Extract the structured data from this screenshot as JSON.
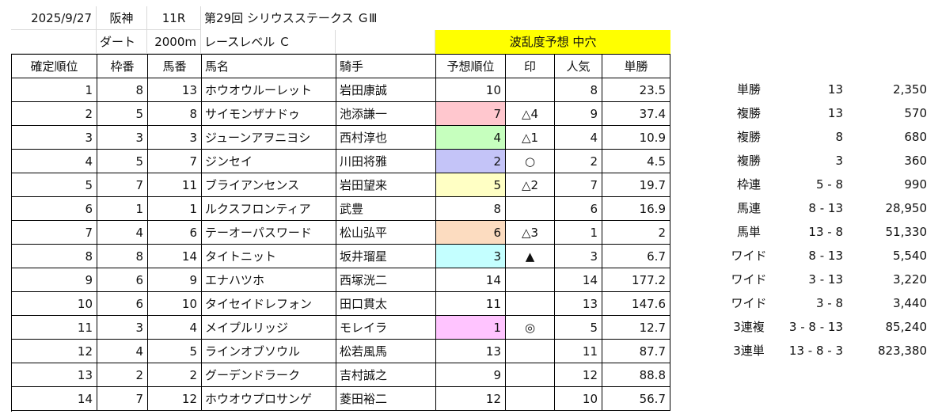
{
  "race": {
    "date": "2025/9/27",
    "venue": "阪神",
    "race_no": "11R",
    "race_name": "第29回 シリウスステークス ＧⅢ",
    "surface": "ダート",
    "distance": "2000m",
    "level": "レースレベル Ｃ",
    "upset_forecast": "波乱度予想 中穴"
  },
  "headers": {
    "finish": "確定順位",
    "frame": "枠番",
    "number": "馬番",
    "horse": "馬名",
    "jockey": "騎手",
    "pred_rank": "予想順位",
    "mark": "印",
    "popularity": "人気",
    "win_odds": "単勝"
  },
  "rows": [
    {
      "finish": "1",
      "frame": "8",
      "number": "13",
      "horse": "ホウオウルーレット",
      "jockey": "岩田康誠",
      "pred": "10",
      "mark": "",
      "pop": "8",
      "odds": "23.5",
      "color": ""
    },
    {
      "finish": "2",
      "frame": "5",
      "number": "8",
      "horse": "サイモンザナドゥ",
      "jockey": "池添謙一",
      "pred": "7",
      "mark": "△4",
      "pop": "9",
      "odds": "37.4",
      "color": "#ffc7ce"
    },
    {
      "finish": "3",
      "frame": "3",
      "number": "3",
      "horse": "ジューンアヲニヨシ",
      "jockey": "西村淳也",
      "pred": "4",
      "mark": "△1",
      "pop": "4",
      "odds": "10.9",
      "color": "#c6ffbe"
    },
    {
      "finish": "4",
      "frame": "5",
      "number": "7",
      "horse": "ジンセイ",
      "jockey": "川田将雅",
      "pred": "2",
      "mark": "○",
      "pop": "2",
      "odds": "4.5",
      "color": "#c4c4f8"
    },
    {
      "finish": "5",
      "frame": "7",
      "number": "11",
      "horse": "ブライアンセンス",
      "jockey": "岩田望来",
      "pred": "5",
      "mark": "△2",
      "pop": "7",
      "odds": "19.7",
      "color": "#ffffc4"
    },
    {
      "finish": "6",
      "frame": "1",
      "number": "1",
      "horse": "ルクスフロンティア",
      "jockey": "武豊",
      "pred": "8",
      "mark": "",
      "pop": "6",
      "odds": "16.9",
      "color": ""
    },
    {
      "finish": "7",
      "frame": "4",
      "number": "6",
      "horse": "テーオーパスワード",
      "jockey": "松山弘平",
      "pred": "6",
      "mark": "△3",
      "pop": "1",
      "odds": "2",
      "color": "#fcdcc0"
    },
    {
      "finish": "8",
      "frame": "8",
      "number": "14",
      "horse": "タイトニット",
      "jockey": "坂井瑠星",
      "pred": "3",
      "mark": "▲",
      "pop": "3",
      "odds": "6.7",
      "color": "#c4ffff"
    },
    {
      "finish": "9",
      "frame": "6",
      "number": "9",
      "horse": "エナハツホ",
      "jockey": "西塚洸二",
      "pred": "14",
      "mark": "",
      "pop": "14",
      "odds": "177.2",
      "color": ""
    },
    {
      "finish": "10",
      "frame": "6",
      "number": "10",
      "horse": "タイセイドレフォン",
      "jockey": "田口貫太",
      "pred": "11",
      "mark": "",
      "pop": "13",
      "odds": "147.6",
      "color": ""
    },
    {
      "finish": "11",
      "frame": "3",
      "number": "4",
      "horse": "メイプルリッジ",
      "jockey": "モレイラ",
      "pred": "1",
      "mark": "◎",
      "pop": "5",
      "odds": "12.7",
      "color": "#ffc4ff"
    },
    {
      "finish": "12",
      "frame": "4",
      "number": "5",
      "horse": "ラインオブソウル",
      "jockey": "松若風馬",
      "pred": "13",
      "mark": "",
      "pop": "11",
      "odds": "87.7",
      "color": ""
    },
    {
      "finish": "13",
      "frame": "2",
      "number": "2",
      "horse": "グーデンドラーク",
      "jockey": "吉村誠之",
      "pred": "9",
      "mark": "",
      "pop": "12",
      "odds": "88.8",
      "color": ""
    },
    {
      "finish": "14",
      "frame": "7",
      "number": "12",
      "horse": "ホウオウプロサンゲ",
      "jockey": "菱田裕二",
      "pred": "12",
      "mark": "",
      "pop": "10",
      "odds": "56.7",
      "color": ""
    }
  ],
  "payouts": [
    {
      "type": "単勝",
      "combo": "13",
      "amount": "2,350"
    },
    {
      "type": "複勝",
      "combo": "13",
      "amount": "570"
    },
    {
      "type": "複勝",
      "combo": "8",
      "amount": "680"
    },
    {
      "type": "複勝",
      "combo": "3",
      "amount": "360"
    },
    {
      "type": "枠連",
      "combo": "5 - 8",
      "amount": "990"
    },
    {
      "type": "馬連",
      "combo": "8 - 13",
      "amount": "28,950"
    },
    {
      "type": "馬単",
      "combo": "13 - 8",
      "amount": "51,330"
    },
    {
      "type": "ワイド",
      "combo": "8 - 13",
      "amount": "5,540"
    },
    {
      "type": "ワイド",
      "combo": "3 - 13",
      "amount": "3,220"
    },
    {
      "type": "ワイド",
      "combo": "3 - 8",
      "amount": "3,440"
    },
    {
      "type": "3連複",
      "combo": "3 - 8 - 13",
      "amount": "85,240"
    },
    {
      "type": "3連単",
      "combo": "13 - 8 - 3",
      "amount": "823,380"
    }
  ]
}
